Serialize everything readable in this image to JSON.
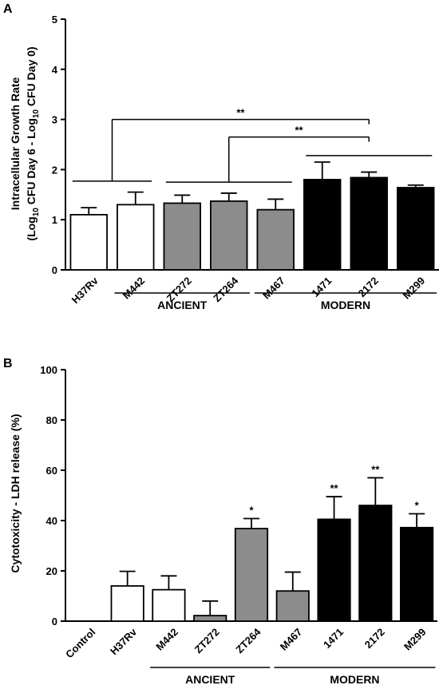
{
  "chart_data": [
    {
      "panel": "A",
      "type": "bar",
      "ylabel_line1": "Intracellular Growth Rate",
      "ylabel_line2": "(Log10 CFU Day 6 - Log10 CFU Day 0)",
      "ylim": [
        0,
        5
      ],
      "yticks": [
        "0",
        "1",
        "2",
        "3",
        "4",
        "5"
      ],
      "categories": [
        "H37Rv",
        "M442",
        "ZT272",
        "ZT264",
        "M467",
        "1471",
        "2172",
        "M299"
      ],
      "values": [
        1.1,
        1.3,
        1.33,
        1.37,
        1.2,
        1.8,
        1.84,
        1.64
      ],
      "errors": [
        0.14,
        0.25,
        0.16,
        0.16,
        0.21,
        0.35,
        0.11,
        0.05
      ],
      "bar_fill": [
        "#ffffff",
        "#ffffff",
        "#8c8c8c",
        "#8c8c8c",
        "#8c8c8c",
        "#000000",
        "#000000",
        "#000000"
      ],
      "significance": [
        {
          "label": "**",
          "from": [
            "H37Rv",
            "M442"
          ],
          "to": "2172",
          "y": 3.0
        },
        {
          "label": "**",
          "from": [
            "ZT272",
            "ZT264",
            "M467"
          ],
          "to": "2172",
          "y": 2.65
        }
      ],
      "groups": [
        {
          "label": "ANCIENT",
          "span": [
            "M442",
            "ZT264"
          ]
        },
        {
          "label": "MODERN",
          "span": [
            "M467",
            "M299"
          ]
        }
      ]
    },
    {
      "panel": "B",
      "type": "bar",
      "ylabel": "Cytotoxicity - LDH release (%)",
      "ylim": [
        0,
        100
      ],
      "yticks": [
        "0",
        "20",
        "40",
        "60",
        "80",
        "100"
      ],
      "categories": [
        "Control",
        "H37Rv",
        "M442",
        "ZT272",
        "ZT264",
        "M467",
        "1471",
        "2172",
        "M299"
      ],
      "values": [
        0,
        14,
        12.5,
        2.2,
        36.8,
        12,
        40.5,
        46,
        37.2
      ],
      "errors": [
        0,
        5.8,
        5.5,
        5.8,
        4,
        7.5,
        9,
        11,
        5.5
      ],
      "bar_fill": [
        "#ffffff",
        "#ffffff",
        "#ffffff",
        "#8c8c8c",
        "#8c8c8c",
        "#8c8c8c",
        "#000000",
        "#000000",
        "#000000"
      ],
      "annotations": [
        "",
        "",
        "",
        "",
        "*",
        "",
        "**",
        "**",
        "*"
      ],
      "groups": [
        {
          "label": "ANCIENT",
          "span": [
            "M442",
            "ZT264"
          ]
        },
        {
          "label": "MODERN",
          "span": [
            "M467",
            "M299"
          ]
        }
      ]
    }
  ]
}
